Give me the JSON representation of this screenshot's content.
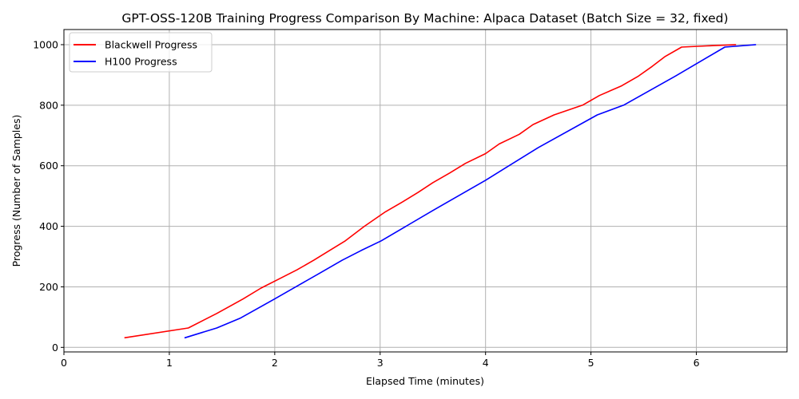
{
  "chart_data": {
    "type": "line",
    "title": "GPT-OSS-120B Training Progress Comparison By Machine: Alpaca Dataset (Batch Size = 32, fixed)",
    "xlabel": "Elapsed Time (minutes)",
    "ylabel": "Progress (Number of Samples)",
    "xlim": [
      0,
      6.86
    ],
    "ylim": [
      -15,
      1050
    ],
    "xticks": [
      0,
      1,
      2,
      3,
      4,
      5,
      6
    ],
    "yticks": [
      0,
      200,
      400,
      600,
      800,
      1000
    ],
    "grid": true,
    "legend_position": "upper left",
    "series": [
      {
        "name": "Blackwell Progress",
        "color": "#ff0000",
        "x": [
          0.58,
          1.18,
          1.45,
          1.7,
          1.87,
          2.03,
          2.21,
          2.37,
          2.52,
          2.67,
          2.85,
          3.05,
          3.21,
          3.36,
          3.5,
          3.66,
          3.81,
          4.0,
          4.13,
          4.32,
          4.45,
          4.65,
          4.92,
          5.08,
          5.29,
          5.45,
          5.58,
          5.7,
          5.86,
          6.1,
          6.37
        ],
        "y": [
          32,
          64,
          112,
          160,
          196,
          224,
          256,
          288,
          320,
          352,
          400,
          448,
          480,
          512,
          544,
          576,
          608,
          640,
          672,
          704,
          736,
          768,
          800,
          832,
          864,
          896,
          928,
          960,
          992,
          996,
          1000
        ]
      },
      {
        "name": "H100 Progress",
        "color": "#0000ff",
        "x": [
          1.15,
          1.45,
          1.67,
          2.0,
          2.2,
          2.42,
          2.64,
          2.82,
          3.01,
          3.5,
          4.0,
          4.5,
          5.06,
          5.31,
          5.8,
          6.27,
          6.56
        ],
        "y": [
          32,
          64,
          96,
          160,
          200,
          244,
          288,
          320,
          352,
          452,
          552,
          660,
          768,
          800,
          896,
          992,
          1000
        ]
      }
    ]
  }
}
